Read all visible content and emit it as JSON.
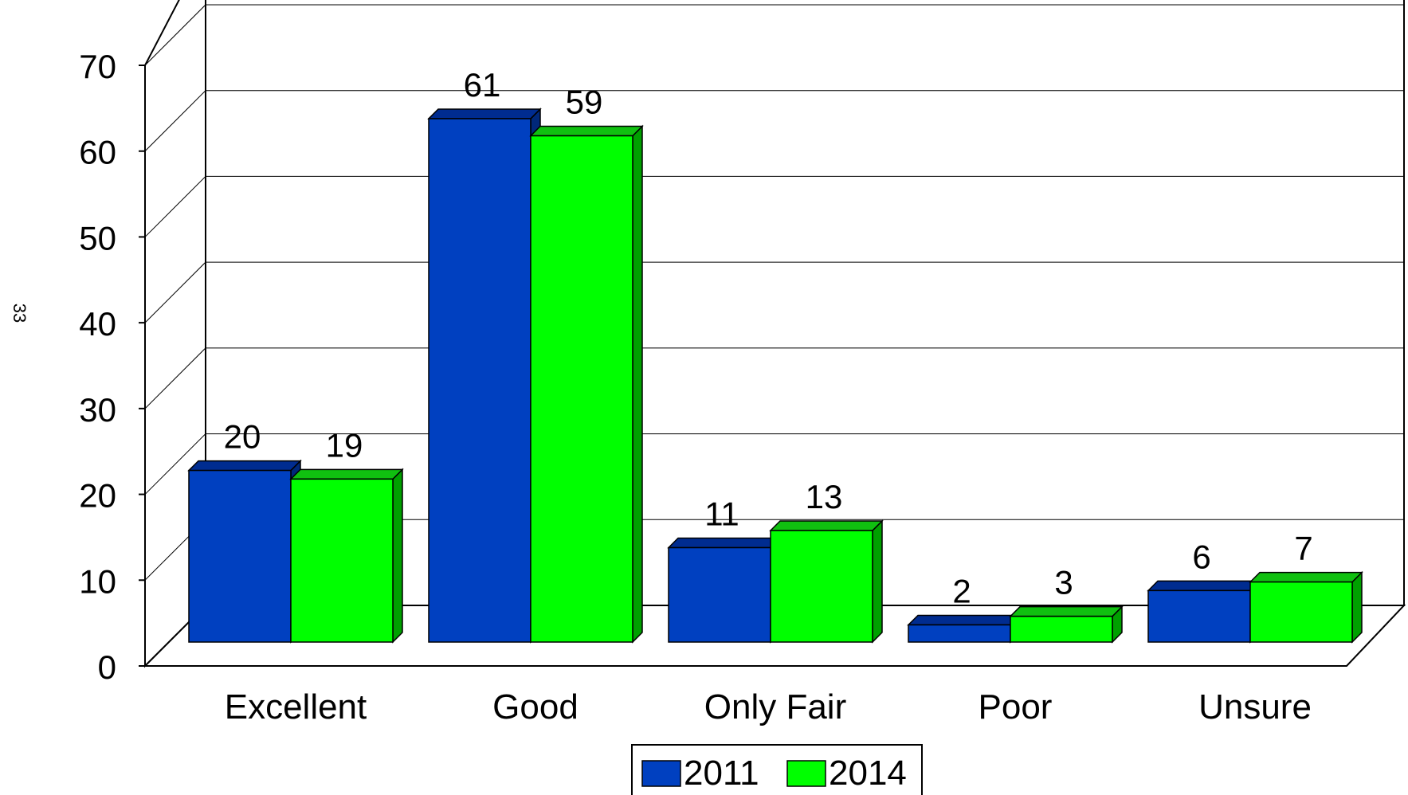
{
  "page_number": "33",
  "chart_data": {
    "type": "bar",
    "title": "",
    "xlabel": "",
    "ylabel": "",
    "categories": [
      "Excellent",
      "Good",
      "Only Fair",
      "Poor",
      "Unsure"
    ],
    "series": [
      {
        "name": "2011",
        "values": [
          20,
          61,
          11,
          2,
          6
        ],
        "color": "#0040C0"
      },
      {
        "name": "2014",
        "values": [
          19,
          59,
          13,
          3,
          7
        ],
        "color": "#00FF00"
      }
    ],
    "ylim": [
      0,
      70
    ],
    "yticks": [
      "0",
      "10",
      "20",
      "30",
      "40",
      "50",
      "60",
      "70"
    ],
    "grid": true,
    "three_d": true,
    "legend_position": "bottom"
  }
}
